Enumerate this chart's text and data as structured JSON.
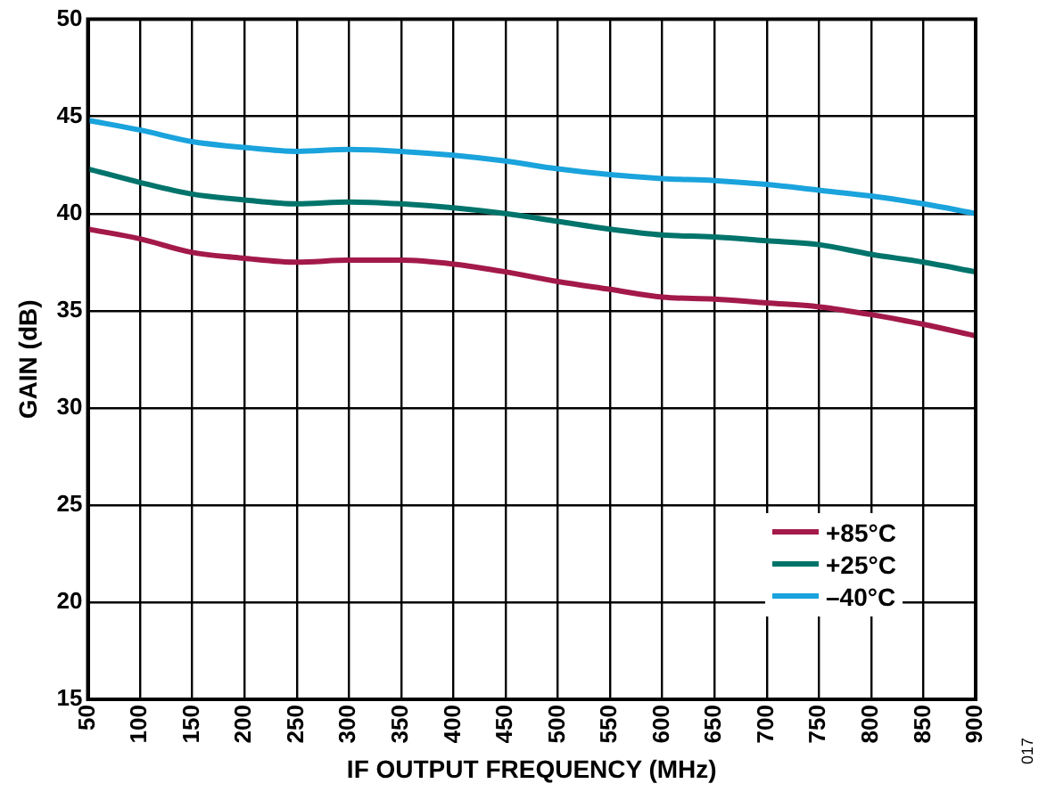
{
  "chart_data": {
    "type": "line",
    "xlabel": "IF OUTPUT FREQUENCY (MHz)",
    "ylabel": "GAIN (dB)",
    "x": [
      50,
      100,
      150,
      200,
      250,
      300,
      350,
      400,
      450,
      500,
      550,
      600,
      650,
      700,
      750,
      800,
      850,
      900
    ],
    "series": [
      {
        "name": "+85°C",
        "color": "#a3194a",
        "values": [
          39.2,
          38.7,
          38.0,
          37.7,
          37.5,
          37.6,
          37.6,
          37.4,
          37.0,
          36.5,
          36.1,
          35.7,
          35.6,
          35.4,
          35.2,
          34.8,
          34.3,
          33.7
        ]
      },
      {
        "name": "+25°C",
        "color": "#00746b",
        "values": [
          42.3,
          41.6,
          41.0,
          40.7,
          40.5,
          40.6,
          40.5,
          40.3,
          40.0,
          39.6,
          39.2,
          38.9,
          38.8,
          38.6,
          38.4,
          37.9,
          37.5,
          37.0
        ]
      },
      {
        "name": "–40°C",
        "color": "#1aa3dc",
        "values": [
          44.8,
          44.3,
          43.7,
          43.4,
          43.2,
          43.3,
          43.2,
          43.0,
          42.7,
          42.3,
          42.0,
          41.8,
          41.7,
          41.5,
          41.2,
          40.9,
          40.5,
          40.0
        ]
      }
    ],
    "xlim": [
      50,
      900
    ],
    "xticks": [
      50,
      100,
      150,
      200,
      250,
      300,
      350,
      400,
      450,
      500,
      550,
      600,
      650,
      700,
      750,
      800,
      850,
      900
    ],
    "ylim": [
      15,
      50
    ],
    "yticks": [
      15,
      20,
      25,
      30,
      35,
      40,
      45,
      50
    ],
    "grid": true,
    "legend": "bottom right",
    "marker": "none",
    "line_style": "solid",
    "annotations": [
      "017"
    ]
  }
}
